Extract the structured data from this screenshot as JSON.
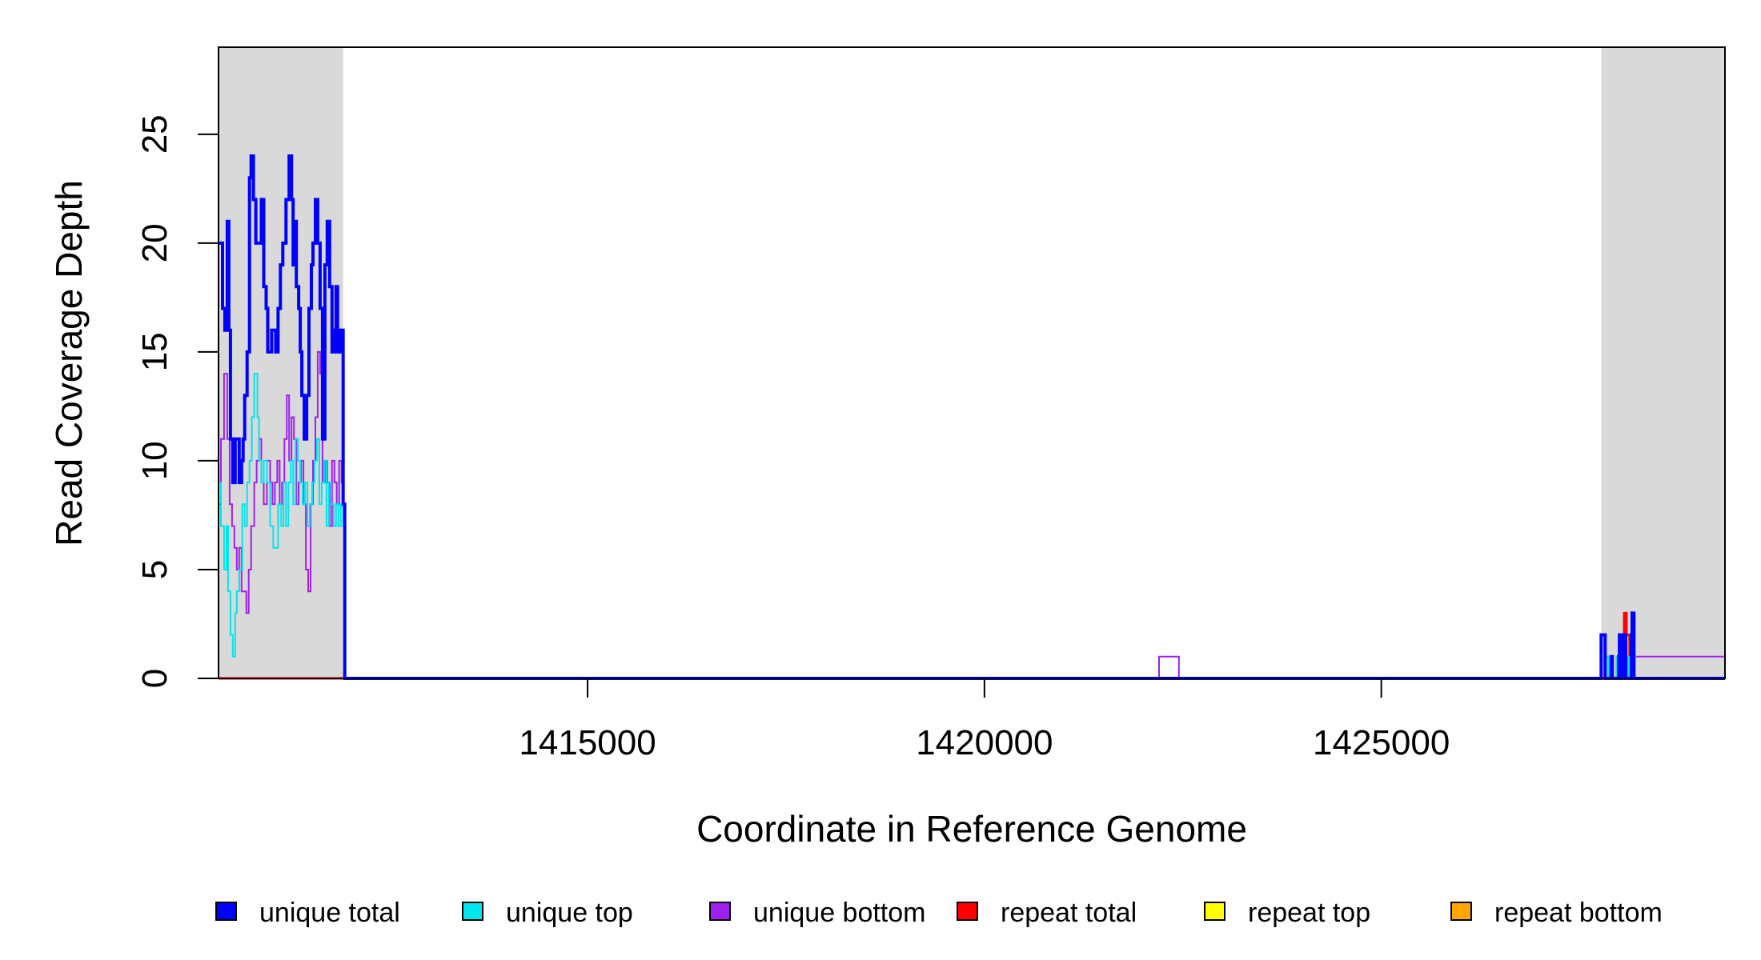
{
  "chart_data": {
    "type": "line",
    "title": "",
    "xlabel": "Coordinate in Reference Genome",
    "ylabel": "Read Coverage Depth",
    "xlim": [
      1410350,
      1429330
    ],
    "ylim": [
      0,
      29
    ],
    "x_ticks": [
      1415000,
      1420000,
      1425000
    ],
    "x_tick_labels": [
      "1415000",
      "1420000",
      "1425000"
    ],
    "y_ticks": [
      0,
      5,
      10,
      15,
      20,
      25
    ],
    "y_tick_labels": [
      "0",
      "5",
      "10",
      "15",
      "20",
      "25"
    ],
    "grid": false,
    "legend_position": "bottom",
    "shaded_regions": [
      {
        "x0": 1410350,
        "x1": 1411920,
        "color": "#d9d9d9"
      },
      {
        "x0": 1427770,
        "x1": 1429330,
        "color": "#d9d9d9"
      }
    ],
    "series": [
      {
        "name": "unique total",
        "color": "#0000ff",
        "width": 4,
        "x": [
          1410350,
          1410400,
          1410430,
          1410460,
          1410480,
          1410500,
          1410530,
          1410560,
          1410590,
          1410610,
          1410640,
          1410660,
          1410680,
          1410710,
          1410740,
          1410760,
          1410790,
          1410820,
          1410860,
          1410890,
          1410920,
          1410950,
          1410970,
          1411000,
          1411020,
          1411040,
          1411070,
          1411100,
          1411130,
          1411160,
          1411200,
          1411240,
          1411270,
          1411290,
          1411310,
          1411330,
          1411360,
          1411380,
          1411400,
          1411430,
          1411460,
          1411490,
          1411520,
          1411540,
          1411570,
          1411600,
          1411630,
          1411660,
          1411690,
          1411720,
          1411750,
          1411780,
          1411810,
          1411830,
          1411850,
          1411870,
          1411890,
          1411910,
          1411920,
          1411940,
          1427770,
          1427820,
          1427840,
          1427850,
          1427900,
          1427910,
          1427960,
          1427990,
          1428000,
          1428030,
          1428050,
          1428080,
          1428120,
          1428150,
          1428160,
          1428180,
          1429330
        ],
        "y": [
          20,
          17,
          16,
          21,
          16,
          11,
          9,
          11,
          11,
          9,
          10,
          11,
          13,
          15,
          23,
          24,
          22,
          20,
          20,
          22,
          18,
          17,
          15,
          15,
          16,
          16,
          15,
          17,
          19,
          20,
          22,
          24,
          22,
          19,
          21,
          18,
          17,
          15,
          13,
          11,
          13,
          17,
          19,
          20,
          22,
          20,
          17,
          11,
          19,
          21,
          18,
          15,
          16,
          18,
          15,
          16,
          15,
          16,
          8,
          0,
          2,
          0,
          0,
          0,
          1,
          0,
          0,
          1,
          2,
          0,
          2,
          0,
          0,
          2,
          3,
          0,
          0
        ]
      },
      {
        "name": "unique top",
        "color": "#00e5ee",
        "width": 2,
        "x": [
          1410350,
          1410380,
          1410420,
          1410450,
          1410470,
          1410500,
          1410530,
          1410560,
          1410580,
          1410610,
          1410650,
          1410680,
          1410710,
          1410740,
          1410770,
          1410800,
          1410840,
          1410860,
          1410890,
          1410920,
          1410960,
          1411000,
          1411040,
          1411070,
          1411100,
          1411140,
          1411170,
          1411200,
          1411230,
          1411260,
          1411290,
          1411320,
          1411350,
          1411380,
          1411410,
          1411440,
          1411470,
          1411500,
          1411530,
          1411560,
          1411590,
          1411620,
          1411650,
          1411680,
          1411710,
          1411740,
          1411770,
          1411800,
          1411830,
          1411860,
          1411890,
          1411920,
          1411940,
          1427830,
          1427860,
          1427960,
          1427990,
          1428100,
          1428120,
          1428170,
          1428200,
          1429330
        ],
        "y": [
          9,
          7,
          5,
          7,
          4,
          2,
          1,
          3,
          4,
          5,
          8,
          7,
          9,
          10,
          12,
          14,
          12,
          10,
          9,
          10,
          9,
          7,
          6,
          6,
          8,
          7,
          9,
          7,
          9,
          10,
          8,
          11,
          10,
          9,
          8,
          9,
          7,
          8,
          9,
          10,
          11,
          8,
          9,
          10,
          7,
          9,
          8,
          7,
          8,
          7,
          8,
          7,
          0,
          1,
          0,
          1,
          0,
          1,
          0,
          3,
          0,
          0
        ]
      },
      {
        "name": "unique bottom",
        "color": "#a020f0",
        "width": 2,
        "x": [
          1410350,
          1410380,
          1410420,
          1410460,
          1410490,
          1410520,
          1410550,
          1410580,
          1410610,
          1410640,
          1410670,
          1410700,
          1410730,
          1410760,
          1410800,
          1410830,
          1410860,
          1410890,
          1410920,
          1410960,
          1411000,
          1411030,
          1411060,
          1411090,
          1411120,
          1411150,
          1411180,
          1411210,
          1411240,
          1411270,
          1411300,
          1411330,
          1411360,
          1411390,
          1411420,
          1411450,
          1411480,
          1411510,
          1411540,
          1411570,
          1411600,
          1411630,
          1411660,
          1411690,
          1411720,
          1411750,
          1411780,
          1411810,
          1411840,
          1411870,
          1411900,
          1411920,
          1411940,
          1422200,
          1422450,
          1427830,
          1427870,
          1428120,
          1428160,
          1428190,
          1429330
        ],
        "y": [
          8,
          11,
          14,
          11,
          8,
          7,
          6,
          5,
          6,
          4,
          4,
          3,
          5,
          7,
          9,
          10,
          11,
          9,
          8,
          10,
          9,
          8,
          9,
          10,
          8,
          9,
          11,
          13,
          10,
          12,
          11,
          8,
          9,
          10,
          8,
          5,
          4,
          8,
          10,
          12,
          15,
          14,
          9,
          10,
          9,
          7,
          10,
          9,
          8,
          10,
          9,
          8,
          0,
          1,
          0,
          1,
          0,
          1,
          0,
          1,
          0
        ]
      },
      {
        "name": "repeat total",
        "color": "#ff0000",
        "width": 3,
        "x": [
          1410350,
          1427770,
          1428000,
          1428030,
          1428060,
          1428090,
          1428130,
          1428150,
          1429330
        ],
        "y": [
          0,
          0,
          1,
          2,
          3,
          2,
          1,
          0,
          0
        ]
      },
      {
        "name": "repeat top",
        "color": "#ffff00",
        "width": 2,
        "x": [
          1410350,
          1428020,
          1428050,
          1428090,
          1428130,
          1429330
        ],
        "y": [
          0,
          0,
          1,
          2,
          0,
          0
        ]
      },
      {
        "name": "repeat bottom",
        "color": "#ffa500",
        "width": 2,
        "x": [
          1410350,
          1428000,
          1428040,
          1428080,
          1428120,
          1429330
        ],
        "y": [
          0,
          0,
          1,
          2,
          0,
          0
        ]
      }
    ]
  }
}
